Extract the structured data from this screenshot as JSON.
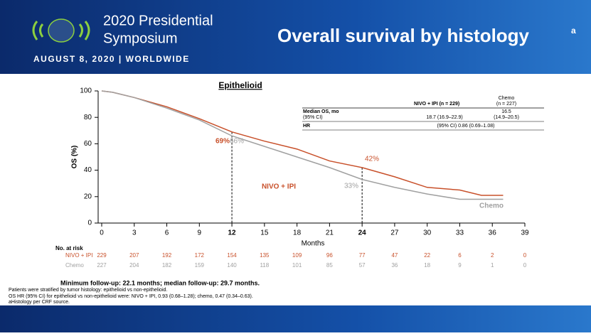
{
  "header": {
    "logo_line1": "2020 Presidential",
    "logo_line2": "Symposium",
    "date": "AUGUST 8, 2020 | WORLDWIDE",
    "title": "Overall survival by histology",
    "title_sup": "a"
  },
  "chart_data": {
    "type": "line",
    "title": "Epithelioid",
    "ylabel": "OS (%)",
    "xlabel": "Months",
    "xlim": [
      0,
      39
    ],
    "xticks": [
      0,
      3,
      6,
      9,
      12,
      15,
      18,
      21,
      24,
      27,
      30,
      33,
      36,
      39
    ],
    "ylim": [
      0,
      100
    ],
    "yticks": [
      0,
      20,
      40,
      60,
      80,
      100
    ],
    "series": [
      {
        "name": "NIVO + IPI",
        "color": "#c8502a",
        "x": [
          0,
          1,
          3,
          6,
          9,
          12,
          15,
          18,
          21,
          24,
          27,
          30,
          33,
          35,
          36,
          37
        ],
        "values": [
          100,
          99,
          95,
          88,
          79,
          69,
          62,
          56,
          47,
          42,
          35,
          27,
          25,
          21,
          21,
          21
        ]
      },
      {
        "name": "Chemo",
        "color": "#a0a0a0",
        "x": [
          0,
          1,
          3,
          6,
          9,
          12,
          15,
          18,
          21,
          24,
          27,
          30,
          33,
          35,
          36,
          37
        ],
        "values": [
          100,
          99,
          95,
          87,
          78,
          66,
          58,
          50,
          42,
          33,
          27,
          22,
          18,
          18,
          18,
          18
        ]
      }
    ],
    "annotations": [
      "69%",
      "66%",
      "42%",
      "33%"
    ]
  },
  "hr_table": {
    "col1": "NIVO + IPI (n = 229)",
    "col2_line1": "Chemo",
    "col2_line2": "(n = 227)",
    "row1_label1": "Median OS, mo",
    "row1_label2": "(95% CI)",
    "row1_v1": "18.7 (16.9–22.9)",
    "row1_v2_line1": "16.5",
    "row1_v2_line2": "(14.9–20.5)",
    "row2_label": "HR",
    "row2_v": "(95% CI) 0.86 (0.69–1.08)"
  },
  "risk_table": {
    "title": "No. at risk",
    "rows": [
      {
        "name": "NIVO + IPI",
        "values": [
          229,
          207,
          192,
          172,
          154,
          135,
          109,
          96,
          77,
          47,
          22,
          6,
          2,
          0
        ]
      },
      {
        "name": "Chemo",
        "values": [
          227,
          204,
          182,
          159,
          140,
          118,
          101,
          85,
          57,
          36,
          18,
          9,
          1,
          0
        ]
      }
    ]
  },
  "footer": {
    "followup": "Minimum follow-up: 22.1 months; median follow-up: 29.7 months.",
    "note1": "Patients were stratified by tumor histology: epithelioid vs non-epithelioid.",
    "note2": "OS HR (95% CI) for epithelioid vs non-epithelioid were: NIVO + IPI, 0.93 (0.68–1.28); chemo, 0.47 (0.34–0.63).",
    "note3": "aHistology per CRF source."
  }
}
